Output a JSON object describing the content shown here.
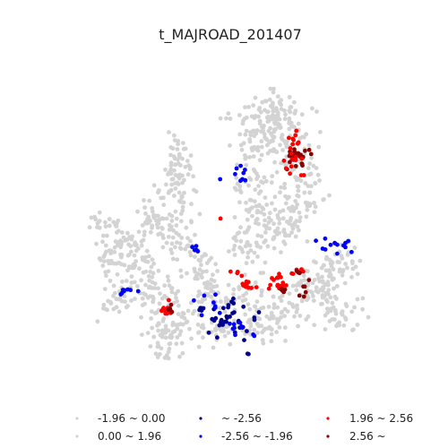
{
  "title": "t_MAJROAD_201407",
  "legend": {
    "items": [
      {
        "label": "-1.96 ~ 0.00",
        "color": "#d3d3d3"
      },
      {
        "label": "0.00 ~ 1.96",
        "color": "#d3d3d3"
      },
      {
        "label": "~ -2.56",
        "color": "#00008b"
      },
      {
        "label": "-2.56 ~ -1.96",
        "color": "#0000ff"
      },
      {
        "label": "1.96 ~ 2.56",
        "color": "#ff0000"
      },
      {
        "label": "2.56 ~",
        "color": "#8b0000"
      }
    ]
  },
  "colors": {
    "insignificant": "#d3d3d3",
    "cold_strong": "#00008b",
    "cold": "#0000ff",
    "hot": "#ff0000",
    "hot_strong": "#8b0000"
  }
}
